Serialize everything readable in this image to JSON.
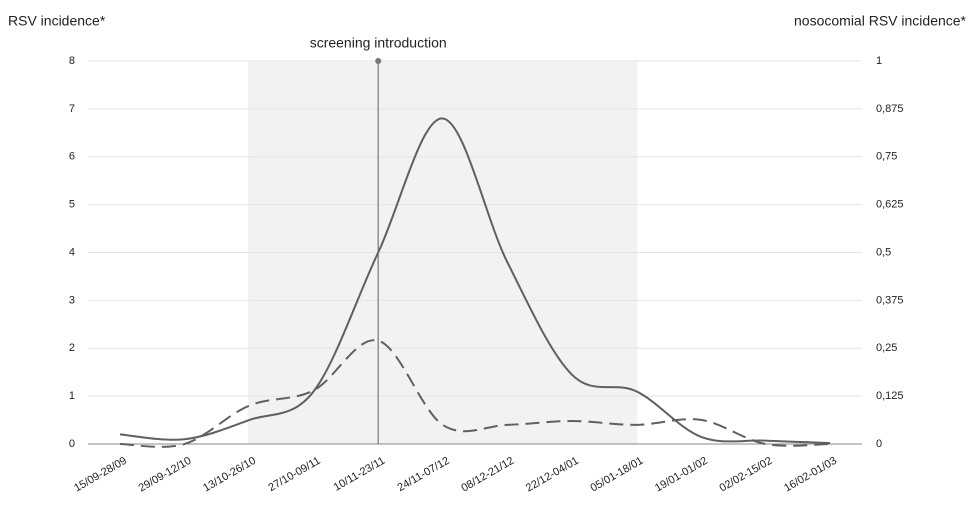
{
  "chart_data": {
    "type": "line",
    "y_label": "RSV incidence*",
    "y2_label": "nosocomial RSV incidence*",
    "categories": [
      "15/09-28/09",
      "29/09-12/10",
      "13/10-26/10",
      "27/10-09/11",
      "10/11-23/11",
      "24/11-07/12",
      "08/12-21/12",
      "22/12-04/01",
      "05/01-18/01",
      "19/01-01/02",
      "02/02-15/02",
      "16/02-01/03"
    ],
    "series": [
      {
        "name": "RSV incidence*",
        "color": "#606060",
        "dash": false,
        "values": [
          0.2,
          0.1,
          0.5,
          1.1,
          4.0,
          6.8,
          3.8,
          1.45,
          1.1,
          0.15,
          0.07,
          0.02
        ]
      },
      {
        "name": "nosocomial RSV incidence*",
        "color": "#606060",
        "dash": true,
        "axis": "y2",
        "values": [
          0,
          0,
          0.1,
          0.14,
          0.27,
          0.05,
          0.05,
          0.06,
          0.05,
          0.063,
          0,
          0
        ]
      }
    ],
    "ylim": [
      0,
      8
    ],
    "yticks": [
      0,
      1,
      2,
      3,
      4,
      5,
      6,
      7,
      8
    ],
    "y2lim": [
      0,
      1
    ],
    "y2ticks": [
      0,
      {
        "value": 0.125,
        "label": "0,125"
      },
      {
        "value": 0.25,
        "label": "0,25"
      },
      {
        "value": 0.375,
        "label": "0,375"
      },
      {
        "value": 0.5,
        "label": "0,5"
      },
      {
        "value": 0.625,
        "label": "0,625"
      },
      {
        "value": 0.75,
        "label": "0,75"
      },
      {
        "value": 0.875,
        "label": "0,875"
      },
      1
    ],
    "grid": true,
    "shaded_range": [
      "13/10-26/10",
      "05/01-18/01"
    ],
    "annotation": {
      "text": "screening introduction",
      "category": "10/11-23/11"
    }
  }
}
